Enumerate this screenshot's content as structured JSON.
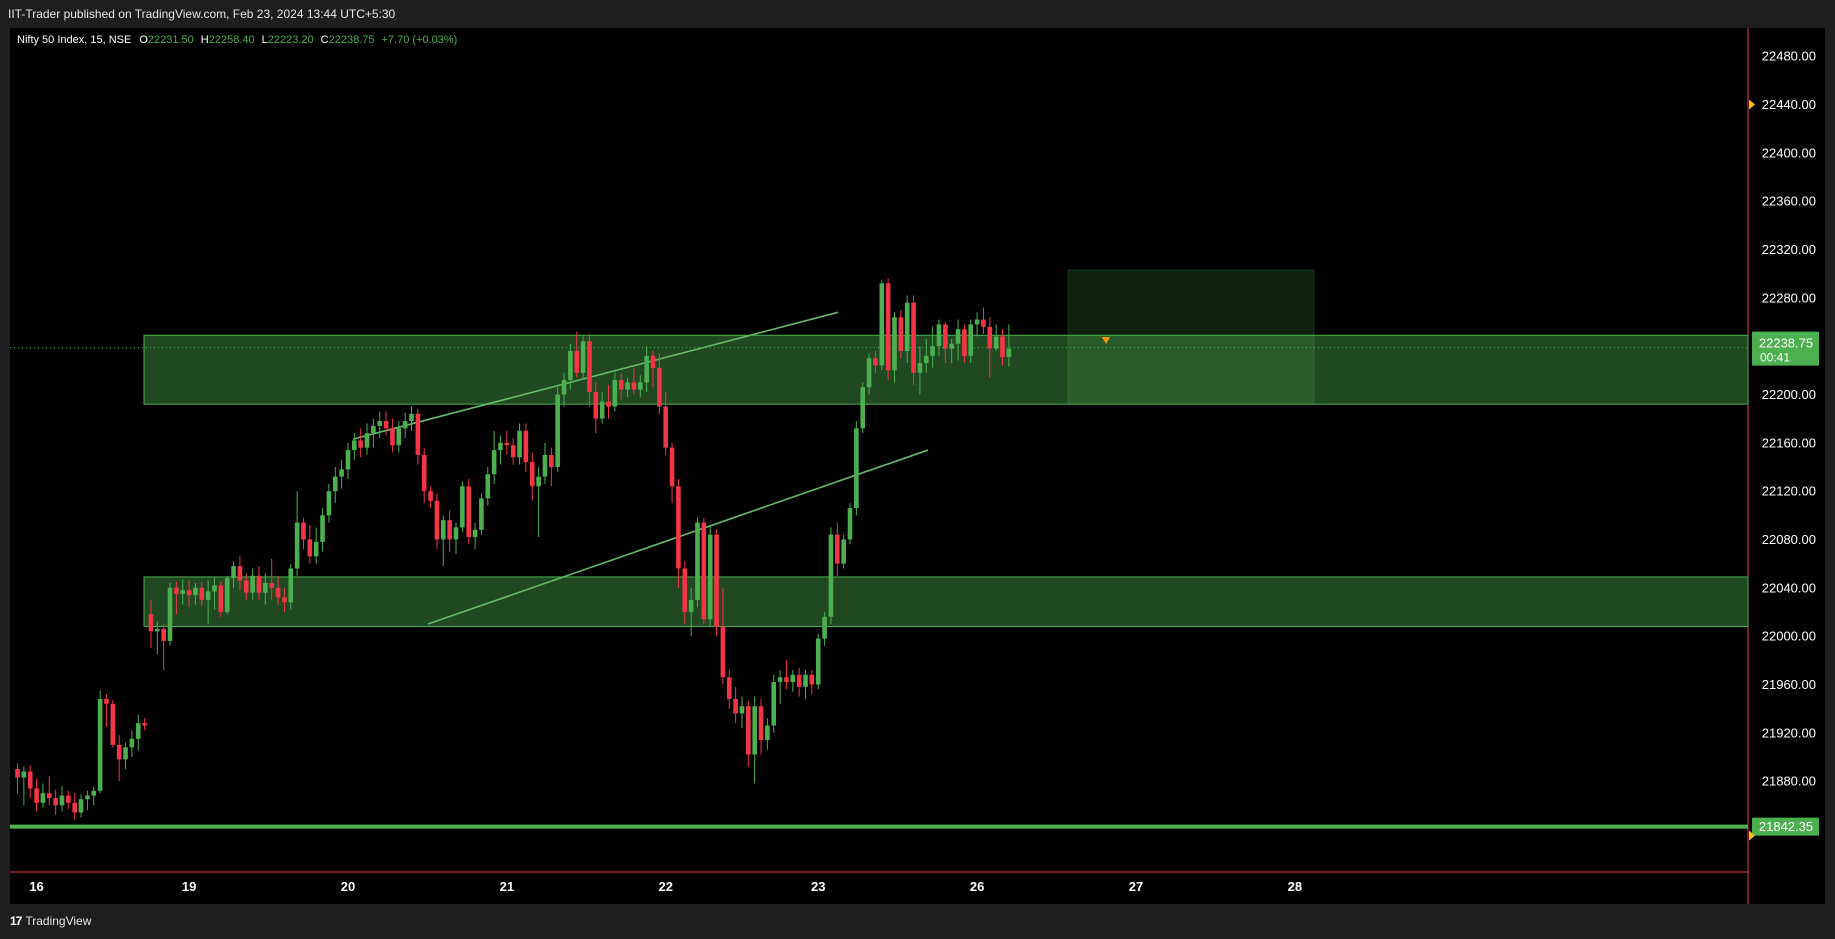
{
  "header": {
    "publisher_line": "IIT-Trader published on TradingView.com, Feb 23, 2024 13:44 UTC+5:30"
  },
  "legend": {
    "symbol": "Nifty 50 Index, 15, NSE",
    "o_label": "O",
    "o_value": "22231.50",
    "h_label": "H",
    "h_value": "22258.40",
    "l_label": "L",
    "l_value": "22223.20",
    "c_label": "C",
    "c_value": "22238.75",
    "change": "+7.70 (+0.03%)"
  },
  "footer": {
    "brand": "TradingView",
    "logo_glyph": "17"
  },
  "colors": {
    "up": "#4caf50",
    "down": "#f23645",
    "zone": "#4caf50",
    "background": "#000000",
    "axis_text": "#ffffff"
  },
  "chart_data": {
    "type": "candlestick",
    "title": "Nifty 50 Index, 15, NSE",
    "ylim": [
      21820,
      22520
    ],
    "yticks": [
      "22480.00",
      "22440.00",
      "22400.00",
      "22360.00",
      "22320.00",
      "22280.00",
      "22240.00",
      "22200.00",
      "22160.00",
      "22120.00",
      "22080.00",
      "22040.00",
      "22000.00",
      "21960.00",
      "21920.00",
      "21880.00"
    ],
    "xticks": [
      "16",
      "19",
      "20",
      "21",
      "22",
      "23",
      "26",
      "27",
      "28"
    ],
    "last_price": "22238.75",
    "countdown": "00:41",
    "support_line_price": "21842.35",
    "alert_marker_price": "22440.00",
    "zones": [
      {
        "name": "upper-demand-zone",
        "from": 22192,
        "to": 22249,
        "start": "15 13:30",
        "end": "28 open"
      },
      {
        "name": "lower-demand-zone",
        "from": 22008,
        "to": 22049,
        "start": "15 13:30",
        "end": "28 open"
      },
      {
        "name": "consolidation-box",
        "from": 22192,
        "to": 22303,
        "start": "22 14:45",
        "end": "26 09:15"
      }
    ],
    "trendlines": [
      {
        "name": "upper-channel-line",
        "from": {
          "x": "19 09:15",
          "y": 22163
        },
        "to": {
          "x": "21 12:15",
          "y": 22268
        }
      },
      {
        "name": "lower-channel-line",
        "from": {
          "x": "19 11:00",
          "y": 22010
        },
        "to": {
          "x": "21 15:00",
          "y": 22154
        }
      }
    ],
    "candles": [
      [
        21890,
        21895,
        21870,
        21883
      ],
      [
        21883,
        21892,
        21860,
        21888
      ],
      [
        21888,
        21893,
        21866,
        21874
      ],
      [
        21874,
        21882,
        21855,
        21862
      ],
      [
        21862,
        21878,
        21858,
        21870
      ],
      [
        21870,
        21884,
        21860,
        21866
      ],
      [
        21866,
        21873,
        21852,
        21860
      ],
      [
        21860,
        21876,
        21855,
        21868
      ],
      [
        21868,
        21872,
        21857,
        21862
      ],
      [
        21862,
        21870,
        21848,
        21854
      ],
      [
        21854,
        21869,
        21850,
        21865
      ],
      [
        21865,
        21872,
        21856,
        21868
      ],
      [
        21868,
        21875,
        21860,
        21872
      ],
      [
        21872,
        21955,
        21870,
        21948
      ],
      [
        21948,
        21952,
        21925,
        21944
      ],
      [
        21944,
        21947,
        21908,
        21910
      ],
      [
        21910,
        21918,
        21880,
        21898
      ],
      [
        21898,
        21912,
        21890,
        21908
      ],
      [
        21908,
        21922,
        21900,
        21915
      ],
      [
        21915,
        21935,
        21905,
        21928
      ],
      [
        21928,
        21932,
        21922,
        21926
      ],
      [
        22018,
        22030,
        21990,
        22004
      ],
      [
        22004,
        22012,
        21985,
        22006
      ],
      [
        22006,
        22010,
        21972,
        21996
      ],
      [
        21996,
        22044,
        21992,
        22040
      ],
      [
        22040,
        22045,
        22018,
        22035
      ],
      [
        22035,
        22047,
        22026,
        22038
      ],
      [
        22038,
        22046,
        22024,
        22034
      ],
      [
        22034,
        22044,
        22026,
        22040
      ],
      [
        22040,
        22045,
        22025,
        22030
      ],
      [
        22030,
        22046,
        22010,
        22037
      ],
      [
        22037,
        22048,
        22022,
        22042
      ],
      [
        22042,
        22045,
        22016,
        22020
      ],
      [
        22020,
        22050,
        22018,
        22048
      ],
      [
        22048,
        22062,
        22040,
        22058
      ],
      [
        22058,
        22066,
        22038,
        22046
      ],
      [
        22046,
        22052,
        22030,
        22036
      ],
      [
        22036,
        22056,
        22030,
        22050
      ],
      [
        22050,
        22058,
        22030,
        22036
      ],
      [
        22036,
        22052,
        22026,
        22044
      ],
      [
        22044,
        22064,
        22030,
        22040
      ],
      [
        22040,
        22050,
        22026,
        22032
      ],
      [
        22032,
        22040,
        22020,
        22028
      ],
      [
        22028,
        22060,
        22022,
        22056
      ],
      [
        22056,
        22120,
        22050,
        22094
      ],
      [
        22094,
        22098,
        22072,
        22080
      ],
      [
        22080,
        22092,
        22060,
        22066
      ],
      [
        22066,
        22090,
        22060,
        22078
      ],
      [
        22078,
        22106,
        22070,
        22100
      ],
      [
        22100,
        22126,
        22094,
        22120
      ],
      [
        22120,
        22140,
        22110,
        22132
      ],
      [
        22132,
        22146,
        22122,
        22138
      ],
      [
        22138,
        22160,
        22130,
        22154
      ],
      [
        22154,
        22168,
        22146,
        22162
      ],
      [
        22162,
        22172,
        22148,
        22156
      ],
      [
        22156,
        22176,
        22150,
        22168
      ],
      [
        22168,
        22180,
        22156,
        22174
      ],
      [
        22174,
        22186,
        22164,
        22178
      ],
      [
        22178,
        22186,
        22166,
        22172
      ],
      [
        22172,
        22180,
        22152,
        22158
      ],
      [
        22158,
        22178,
        22152,
        22172
      ],
      [
        22172,
        22185,
        22164,
        22178
      ],
      [
        22178,
        22190,
        22170,
        22184
      ],
      [
        22184,
        22188,
        22142,
        22150
      ],
      [
        22150,
        22156,
        22110,
        22120
      ],
      [
        22120,
        22124,
        22106,
        22112
      ],
      [
        22112,
        22118,
        22072,
        22080
      ],
      [
        22080,
        22100,
        22058,
        22096
      ],
      [
        22096,
        22104,
        22070,
        22080
      ],
      [
        22080,
        22094,
        22068,
        22090
      ],
      [
        22090,
        22128,
        22086,
        22124
      ],
      [
        22124,
        22130,
        22076,
        22082
      ],
      [
        22082,
        22094,
        22072,
        22088
      ],
      [
        22088,
        22118,
        22084,
        22114
      ],
      [
        22114,
        22140,
        22108,
        22134
      ],
      [
        22134,
        22170,
        22126,
        22154
      ],
      [
        22154,
        22166,
        22142,
        22160
      ],
      [
        22160,
        22170,
        22150,
        22158
      ],
      [
        22158,
        22164,
        22142,
        22148
      ],
      [
        22148,
        22176,
        22142,
        22170
      ],
      [
        22170,
        22176,
        22136,
        22144
      ],
      [
        22144,
        22152,
        22112,
        22124
      ],
      [
        22124,
        22140,
        22082,
        22132
      ],
      [
        22132,
        22160,
        22126,
        22150
      ],
      [
        22150,
        22156,
        22124,
        22140
      ],
      [
        22140,
        22206,
        22136,
        22200
      ],
      [
        22200,
        22218,
        22190,
        22212
      ],
      [
        22212,
        22242,
        22204,
        22236
      ],
      [
        22236,
        22252,
        22214,
        22218
      ],
      [
        22218,
        22248,
        22212,
        22244
      ],
      [
        22244,
        22250,
        22190,
        22202
      ],
      [
        22202,
        22210,
        22168,
        22180
      ],
      [
        22180,
        22202,
        22176,
        22194
      ],
      [
        22194,
        22208,
        22180,
        22190
      ],
      [
        22190,
        22218,
        22186,
        22212
      ],
      [
        22212,
        22218,
        22196,
        22204
      ],
      [
        22204,
        22214,
        22198,
        22210
      ],
      [
        22210,
        22222,
        22200,
        22204
      ],
      [
        22204,
        22216,
        22198,
        22210
      ],
      [
        22210,
        22240,
        22202,
        22232
      ],
      [
        22232,
        22236,
        22206,
        22222
      ],
      [
        22222,
        22234,
        22184,
        22190
      ],
      [
        22190,
        22202,
        22150,
        22156
      ],
      [
        22156,
        22160,
        22110,
        22124
      ],
      [
        22124,
        22130,
        22040,
        22056
      ],
      [
        22056,
        22062,
        22010,
        22020
      ],
      [
        22020,
        22040,
        22000,
        22030
      ],
      [
        22030,
        22098,
        22024,
        22094
      ],
      [
        22094,
        22098,
        22010,
        22014
      ],
      [
        22014,
        22092,
        22008,
        22084
      ],
      [
        22084,
        22088,
        22000,
        22008
      ],
      [
        22008,
        22040,
        21960,
        21966
      ],
      [
        21966,
        21972,
        21940,
        21948
      ],
      [
        21948,
        21958,
        21928,
        21936
      ],
      [
        21936,
        21950,
        21924,
        21942
      ],
      [
        21942,
        21946,
        21892,
        21902
      ],
      [
        21902,
        21950,
        21878,
        21942
      ],
      [
        21942,
        21948,
        21902,
        21914
      ],
      [
        21914,
        21932,
        21906,
        21926
      ],
      [
        21926,
        21968,
        21920,
        21962
      ],
      [
        21962,
        21972,
        21944,
        21966
      ],
      [
        21966,
        21980,
        21956,
        21962
      ],
      [
        21962,
        21972,
        21954,
        21968
      ],
      [
        21968,
        21974,
        21950,
        21958
      ],
      [
        21958,
        21972,
        21948,
        21968
      ],
      [
        21968,
        21972,
        21952,
        21960
      ],
      [
        21960,
        22002,
        21956,
        21998
      ],
      [
        21998,
        22020,
        21992,
        22016
      ],
      [
        22016,
        22090,
        22010,
        22084
      ],
      [
        22084,
        22094,
        22050,
        22060
      ],
      [
        22060,
        22084,
        22056,
        22080
      ],
      [
        22080,
        22110,
        22076,
        22106
      ],
      [
        22106,
        22178,
        22100,
        22172
      ],
      [
        22172,
        22210,
        22168,
        22206
      ],
      [
        22206,
        22234,
        22200,
        22230
      ],
      [
        22230,
        22236,
        22218,
        22224
      ],
      [
        22224,
        22295,
        22220,
        22292
      ],
      [
        22292,
        22296,
        22212,
        22220
      ],
      [
        22220,
        22268,
        22210,
        22264
      ],
      [
        22264,
        22270,
        22230,
        22236
      ],
      [
        22236,
        22282,
        22226,
        22276
      ],
      [
        22276,
        22282,
        22208,
        22218
      ],
      [
        22218,
        22240,
        22200,
        22226
      ],
      [
        22226,
        22246,
        22218,
        22232
      ],
      [
        22232,
        22256,
        22222,
        22240
      ],
      [
        22240,
        22262,
        22232,
        22258
      ],
      [
        22258,
        22260,
        22226,
        22238
      ],
      [
        22238,
        22246,
        22226,
        22242
      ],
      [
        22242,
        22262,
        22228,
        22254
      ],
      [
        22254,
        22258,
        22226,
        22232
      ],
      [
        22232,
        22262,
        22226,
        22258
      ],
      [
        22258,
        22268,
        22248,
        22262
      ],
      [
        22262,
        22272,
        22250,
        22256
      ],
      [
        22256,
        22264,
        22214,
        22238
      ],
      [
        22238,
        22258,
        22236,
        22248
      ],
      [
        22248,
        22254,
        22224,
        22231
      ],
      [
        22231,
        22258,
        22223,
        22238
      ]
    ],
    "timeline": [
      {
        "x": 3,
        "label": "16"
      },
      {
        "x": 27,
        "label": "19"
      },
      {
        "x": 52,
        "label": "20"
      },
      {
        "x": 77,
        "label": "21"
      },
      {
        "x": 102,
        "label": "22"
      },
      {
        "x": 126,
        "label": "23"
      },
      {
        "x": 151,
        "label": "26"
      },
      {
        "x": 176,
        "label": "27"
      },
      {
        "x": 201,
        "label": "28"
      }
    ]
  }
}
